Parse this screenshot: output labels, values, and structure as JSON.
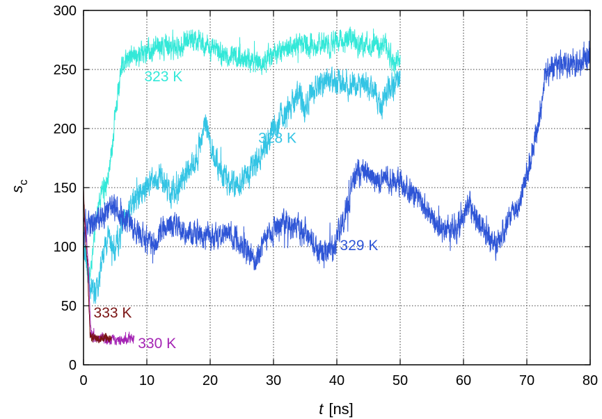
{
  "chart_data": {
    "type": "line",
    "xlabel_var": "t",
    "xlabel_unit": "[ns]",
    "ylabel_main": "s",
    "ylabel_sub": "c",
    "xlim": [
      0,
      80
    ],
    "ylim": [
      0,
      300
    ],
    "x_ticks": [
      "0",
      "10",
      "20",
      "30",
      "40",
      "50",
      "60",
      "70",
      "80"
    ],
    "y_ticks": [
      "0",
      "50",
      "100",
      "150",
      "200",
      "250",
      "300"
    ],
    "grid": true,
    "series": [
      {
        "name": "323 K",
        "color": "#33e8d8",
        "noise": 7,
        "seed": 11,
        "label_at": [
          9.6,
          240
        ],
        "points": [
          [
            0,
            105
          ],
          [
            1,
            75
          ],
          [
            2,
            125
          ],
          [
            3,
            145
          ],
          [
            4,
            160
          ],
          [
            5,
            210
          ],
          [
            6,
            250
          ],
          [
            7,
            258
          ],
          [
            8,
            262
          ],
          [
            10,
            265
          ],
          [
            12,
            270
          ],
          [
            14,
            268
          ],
          [
            16,
            272
          ],
          [
            18,
            275
          ],
          [
            20,
            268
          ],
          [
            22,
            262
          ],
          [
            24,
            260
          ],
          [
            26,
            258
          ],
          [
            28,
            255
          ],
          [
            30,
            262
          ],
          [
            32,
            268
          ],
          [
            34,
            272
          ],
          [
            36,
            270
          ],
          [
            38,
            272
          ],
          [
            40,
            273
          ],
          [
            42,
            275
          ],
          [
            44,
            270
          ],
          [
            46,
            272
          ],
          [
            48,
            268
          ],
          [
            49,
            255
          ],
          [
            50,
            262
          ]
        ]
      },
      {
        "name": "328 K",
        "color": "#33c4e4",
        "noise": 8,
        "seed": 23,
        "label_at": [
          27.6,
          188
        ],
        "points": [
          [
            0,
            105
          ],
          [
            1,
            70
          ],
          [
            2,
            60
          ],
          [
            3,
            95
          ],
          [
            4,
            110
          ],
          [
            5,
            95
          ],
          [
            6,
            115
          ],
          [
            8,
            140
          ],
          [
            10,
            150
          ],
          [
            12,
            160
          ],
          [
            14,
            145
          ],
          [
            16,
            160
          ],
          [
            18,
            175
          ],
          [
            19,
            205
          ],
          [
            20,
            188
          ],
          [
            22,
            160
          ],
          [
            24,
            150
          ],
          [
            26,
            162
          ],
          [
            28,
            178
          ],
          [
            30,
            200
          ],
          [
            32,
            215
          ],
          [
            34,
            230
          ],
          [
            35,
            215
          ],
          [
            36,
            232
          ],
          [
            38,
            240
          ],
          [
            40,
            242
          ],
          [
            42,
            235
          ],
          [
            44,
            240
          ],
          [
            46,
            232
          ],
          [
            47,
            215
          ],
          [
            48,
            232
          ],
          [
            50,
            240
          ]
        ]
      },
      {
        "name": "329 K",
        "color": "#2e55d6",
        "noise": 8,
        "seed": 37,
        "label_at": [
          40.5,
          97
        ],
        "points": [
          [
            0,
            110
          ],
          [
            1,
            118
          ],
          [
            3,
            125
          ],
          [
            5,
            135
          ],
          [
            7,
            120
          ],
          [
            9,
            110
          ],
          [
            11,
            100
          ],
          [
            13,
            120
          ],
          [
            15,
            118
          ],
          [
            17,
            112
          ],
          [
            19,
            108
          ],
          [
            21,
            110
          ],
          [
            23,
            112
          ],
          [
            25,
            102
          ],
          [
            27,
            88
          ],
          [
            29,
            108
          ],
          [
            31,
            120
          ],
          [
            33,
            118
          ],
          [
            35,
            112
          ],
          [
            37,
            95
          ],
          [
            39,
            95
          ],
          [
            41,
            118
          ],
          [
            43,
            165
          ],
          [
            45,
            160
          ],
          [
            47,
            155
          ],
          [
            49,
            155
          ],
          [
            51,
            150
          ],
          [
            53,
            140
          ],
          [
            55,
            125
          ],
          [
            57,
            112
          ],
          [
            59,
            118
          ],
          [
            61,
            135
          ],
          [
            63,
            115
          ],
          [
            65,
            100
          ],
          [
            67,
            120
          ],
          [
            69,
            138
          ],
          [
            71,
            185
          ],
          [
            72,
            208
          ],
          [
            73,
            248
          ],
          [
            75,
            252
          ],
          [
            77,
            255
          ],
          [
            79,
            258
          ],
          [
            80,
            262
          ]
        ]
      },
      {
        "name": "333 K",
        "color": "#7a1414",
        "noise": 3,
        "seed": 51,
        "label_at": [
          1.6,
          40
        ],
        "points": [
          [
            0,
            150
          ],
          [
            0.3,
            105
          ],
          [
            0.6,
            90
          ],
          [
            0.9,
            40
          ],
          [
            1.1,
            22
          ],
          [
            1.5,
            24
          ],
          [
            2,
            22
          ],
          [
            2.5,
            23
          ],
          [
            3,
            22
          ],
          [
            3.5,
            24
          ],
          [
            4,
            23
          ],
          [
            4.4,
            23
          ]
        ]
      },
      {
        "name": "330 K",
        "color": "#a424b4",
        "noise": 3,
        "seed": 67,
        "label_at": [
          8.6,
          14
        ],
        "points": [
          [
            0,
            125
          ],
          [
            0.4,
            118
          ],
          [
            0.8,
            80
          ],
          [
            1.0,
            45
          ],
          [
            1.2,
            26
          ],
          [
            2,
            22
          ],
          [
            3,
            23
          ],
          [
            4,
            21
          ],
          [
            5,
            22
          ],
          [
            6,
            21
          ],
          [
            7,
            22
          ],
          [
            8,
            20
          ]
        ]
      }
    ]
  }
}
